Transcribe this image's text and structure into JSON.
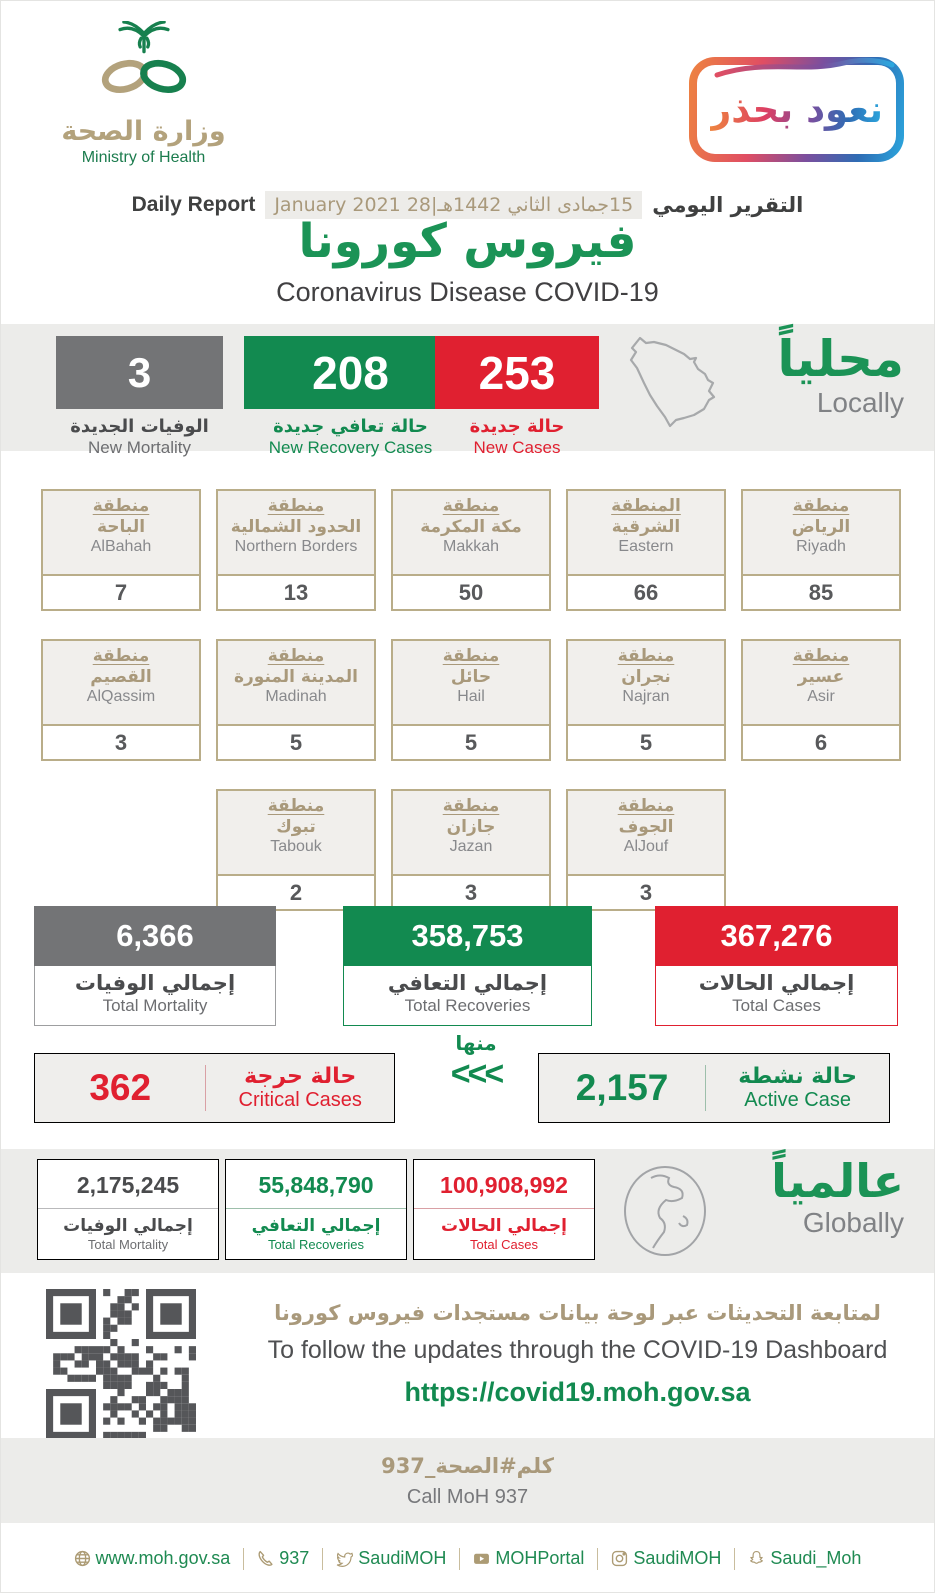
{
  "header": {
    "ministry_name_ar": "وزارة الصحة",
    "ministry_name_en": "Ministry of Health",
    "campaign_badge": "نعود بحذر",
    "report_label_en": "Daily Report",
    "report_label_ar": "التقرير اليومي",
    "report_date": "15جمادى الثاني 1442هـ|28 January 2021",
    "title_ar": "فيروس كورونا",
    "title_en": "Coronavirus Disease COVID-19"
  },
  "locally": {
    "section_label_ar": "محلياً",
    "section_label_en": "Locally",
    "stats": [
      {
        "value": "3",
        "label_ar": "الوفيات الجديدة",
        "label_en": "New Mortality",
        "color": "#737476"
      },
      {
        "value": "208",
        "label_ar": "حالة تعافي جديدة",
        "label_en": "New Recovery Cases",
        "color": "#128a50"
      },
      {
        "value": "253",
        "label_ar": "حالة جديدة",
        "label_en": "New Cases",
        "color": "#e02030"
      }
    ]
  },
  "regions": {
    "rows": [
      [
        {
          "prefix": "منطقة",
          "name_ar": "الباحة",
          "name_en": "AlBahah",
          "value": "7"
        },
        {
          "prefix": "منطقة",
          "name_ar": "الحدود الشمالية",
          "name_en": "Northern Borders",
          "value": "13"
        },
        {
          "prefix": "منطقة",
          "name_ar": "مكة المكرمة",
          "name_en": "Makkah",
          "value": "50"
        },
        {
          "prefix": "المنطقة",
          "name_ar": "الشرقية",
          "name_en": "Eastern",
          "value": "66"
        },
        {
          "prefix": "منطقة",
          "name_ar": "الرياض",
          "name_en": "Riyadh",
          "value": "85"
        }
      ],
      [
        {
          "prefix": "منطقة",
          "name_ar": "القصيم",
          "name_en": "AlQassim",
          "value": "3"
        },
        {
          "prefix": "منطقة",
          "name_ar": "المدينة المنورة",
          "name_en": "Madinah",
          "value": "5"
        },
        {
          "prefix": "منطقة",
          "name_ar": "حائل",
          "name_en": "Hail",
          "value": "5"
        },
        {
          "prefix": "منطقة",
          "name_ar": "نجران",
          "name_en": "Najran",
          "value": "5"
        },
        {
          "prefix": "منطقة",
          "name_ar": "عسير",
          "name_en": "Asir",
          "value": "6"
        }
      ],
      [
        {
          "prefix": "منطقة",
          "name_ar": "تبوك",
          "name_en": "Tabouk",
          "value": "2"
        },
        {
          "prefix": "منطقة",
          "name_ar": "جازان",
          "name_en": "Jazan",
          "value": "3"
        },
        {
          "prefix": "منطقة",
          "name_ar": "الجوف",
          "name_en": "AlJouf",
          "value": "3"
        }
      ]
    ]
  },
  "totals": [
    {
      "value": "6,366",
      "label_ar": "إجمالي الوفيات",
      "label_en": "Total Mortality",
      "color": "#737476"
    },
    {
      "value": "358,753",
      "label_ar": "إجمالي التعافي",
      "label_en": "Total Recoveries",
      "color": "#128a50"
    },
    {
      "value": "367,276",
      "label_ar": "إجمالي الحالات",
      "label_en": "Total Cases",
      "color": "#e02030"
    }
  ],
  "breakdown": {
    "critical": {
      "value": "362",
      "label_ar": "حالة حرجة",
      "label_en": "Critical Cases"
    },
    "of_which_ar": "منها",
    "chevrons": "<<<",
    "active": {
      "value": "2,157",
      "label_ar": "حالة نشطة",
      "label_en": "Active Case"
    }
  },
  "globally": {
    "section_label_ar": "عالمياً",
    "section_label_en": "Globally",
    "stats": [
      {
        "value": "2,175,245",
        "label_ar": "إجمالي الوفيات",
        "label_en": "Total Mortality",
        "color": "#737476"
      },
      {
        "value": "55,848,790",
        "label_ar": "إجمالي التعافي",
        "label_en": "Total Recoveries",
        "color": "#128a50"
      },
      {
        "value": "100,908,992",
        "label_ar": "إجمالي الحالات",
        "label_en": "Total Cases",
        "color": "#e02030"
      }
    ]
  },
  "dashboard": {
    "note_ar": "لمتابعة التحديثات عبر لوحة بيانات مستجدات فيروس كورونا",
    "note_en": "To follow the updates through the COVID-19 Dashboard",
    "url": "https://covid19.moh.gov.sa"
  },
  "call": {
    "label_ar": "كلم#الصحة_937",
    "label_en": "Call MoH 937"
  },
  "footer": {
    "links": [
      {
        "icon": "globe-icon",
        "text": "www.moh.gov.sa"
      },
      {
        "icon": "phone-icon",
        "text": "937"
      },
      {
        "icon": "twitter-icon",
        "text": "SaudiMOH"
      },
      {
        "icon": "youtube-icon",
        "text": "MOHPortal"
      },
      {
        "icon": "instagram-icon",
        "text": "SaudiMOH"
      },
      {
        "icon": "snapchat-icon",
        "text": "Saudi_Moh"
      }
    ]
  }
}
